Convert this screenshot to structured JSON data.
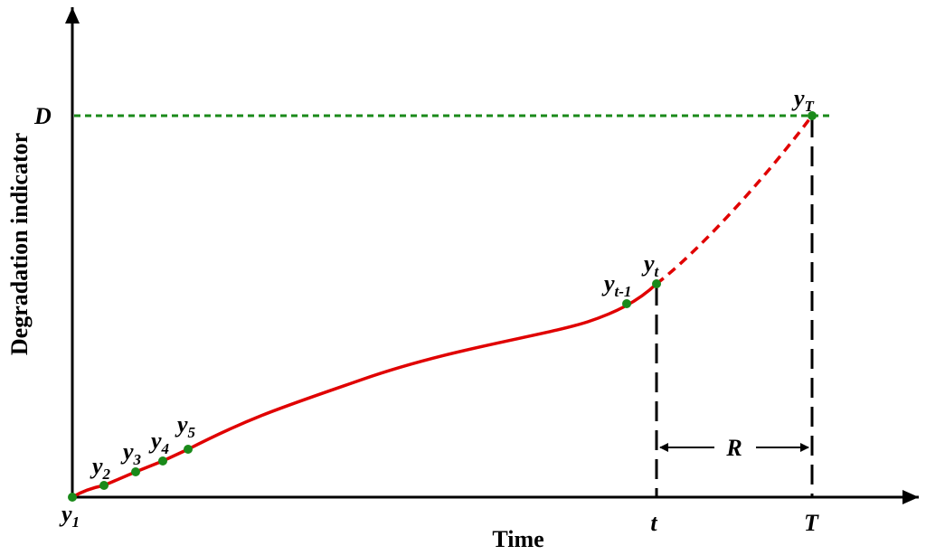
{
  "axes": {
    "y_label": "Degradation indicator",
    "x_label": "Time"
  },
  "threshold": {
    "label": "D"
  },
  "points": [
    {
      "label": "y",
      "sub": "1"
    },
    {
      "label": "y",
      "sub": "2"
    },
    {
      "label": "y",
      "sub": "3"
    },
    {
      "label": "y",
      "sub": "4"
    },
    {
      "label": "y",
      "sub": "5"
    },
    {
      "label": "y",
      "sub": "t-1"
    },
    {
      "label": "y",
      "sub": "t"
    },
    {
      "label": "y",
      "sub": "T"
    }
  ],
  "time_marks": {
    "current": "t",
    "failure": "T",
    "remaining": "R"
  }
}
